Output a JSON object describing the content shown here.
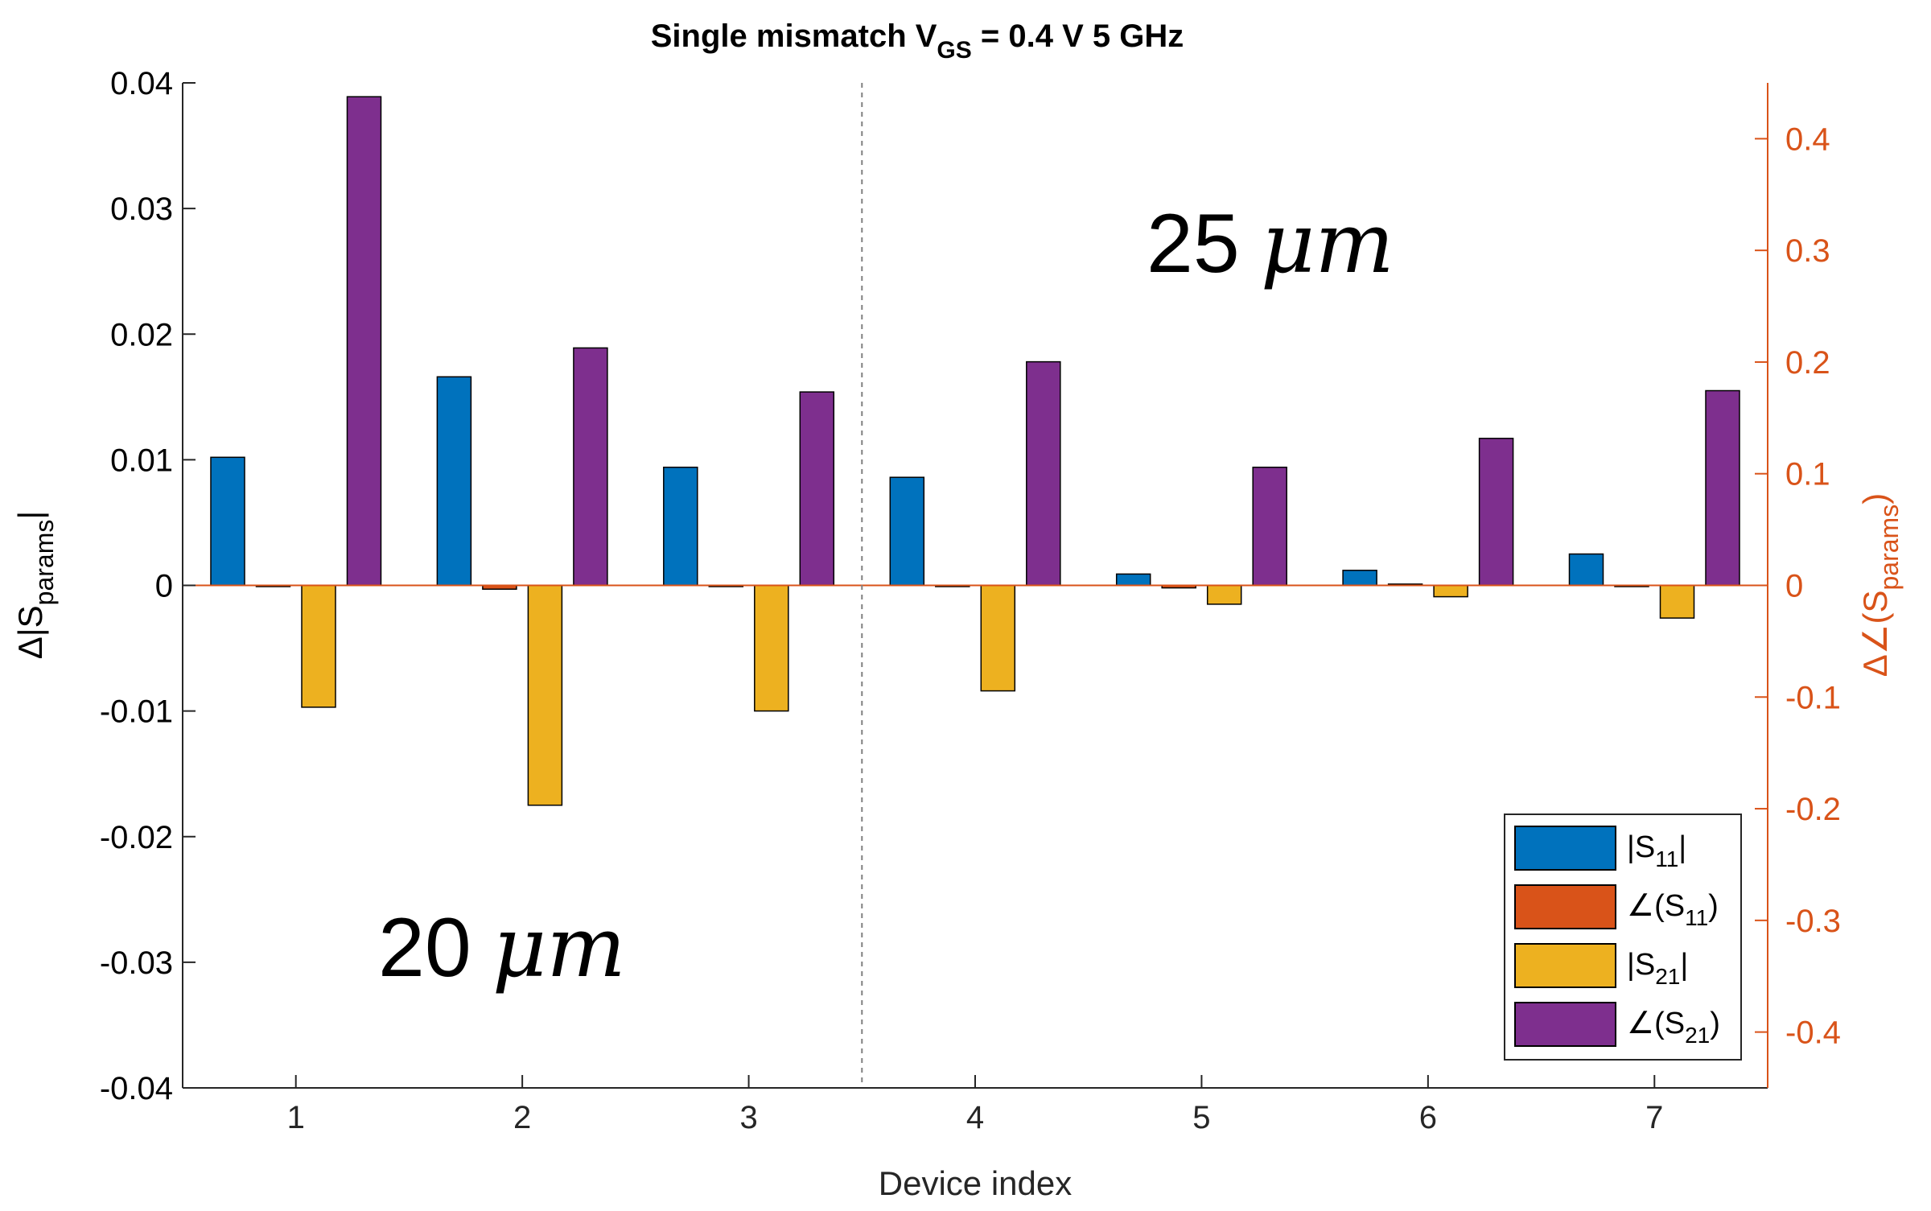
{
  "chart_data": {
    "type": "bar",
    "title_main": "Single mismatch V",
    "title_sub": "GS",
    "title_rest": " = 0.4 V 5 GHz",
    "xlabel": "Device index",
    "ylabel_left_delta": "Δ|S",
    "ylabel_left_sub": "params",
    "ylabel_left_end": "|",
    "ylabel_right_delta": "Δ∠(S",
    "ylabel_right_sub": "params",
    "ylabel_right_end": ")",
    "categories": [
      "1",
      "2",
      "3",
      "4",
      "5",
      "6",
      "7"
    ],
    "ylim_left": [
      -0.04,
      0.04
    ],
    "ylim_right": [
      -0.45,
      0.45
    ],
    "yticks_left": [
      "0.04",
      "0.03",
      "0.02",
      "0.01",
      "0",
      "-0.01",
      "-0.02",
      "-0.03",
      "-0.04"
    ],
    "yticks_right": [
      "0.4",
      "0.3",
      "0.2",
      "0.1",
      "0",
      "-0.1",
      "-0.2",
      "-0.3",
      "-0.4"
    ],
    "divider_x": 3.5,
    "annotations": [
      {
        "text": "25 μm",
        "value": "25",
        "unit": "μm"
      },
      {
        "text": "20 μm",
        "value": "20",
        "unit": "μm"
      }
    ],
    "series": [
      {
        "name": "|S11|",
        "label_pre": "|S",
        "label_sub": "11",
        "label_post": "|",
        "color": "#0072BD",
        "axis": "left",
        "values": [
          0.0102,
          0.0166,
          0.0094,
          0.0086,
          0.0009,
          0.0012,
          0.0025
        ]
      },
      {
        "name": "∠(S11)",
        "label_pre": "∠(S",
        "label_sub": "11",
        "label_post": ")",
        "color": "#D95319",
        "axis": "left",
        "values": [
          0.0,
          -0.0003,
          0.0,
          0.0,
          -0.0002,
          0.0001,
          0.0
        ]
      },
      {
        "name": "|S21|",
        "label_pre": "|S",
        "label_sub": "21",
        "label_post": "|",
        "color": "#EDB120",
        "axis": "left",
        "values": [
          -0.0097,
          -0.0175,
          -0.01,
          -0.0084,
          -0.0015,
          -0.0009,
          -0.0026
        ]
      },
      {
        "name": "∠(S21)",
        "label_pre": "∠(S",
        "label_sub": "21",
        "label_post": ")",
        "color": "#7E2F8E",
        "axis": "left",
        "values": [
          0.0389,
          0.0189,
          0.0154,
          0.0178,
          0.0094,
          0.0117,
          0.0155
        ]
      }
    ],
    "legend_position": "bottom-right",
    "colors": {
      "axis_left": "#000000",
      "axis_right": "#D95319",
      "divider": "#808080"
    }
  }
}
